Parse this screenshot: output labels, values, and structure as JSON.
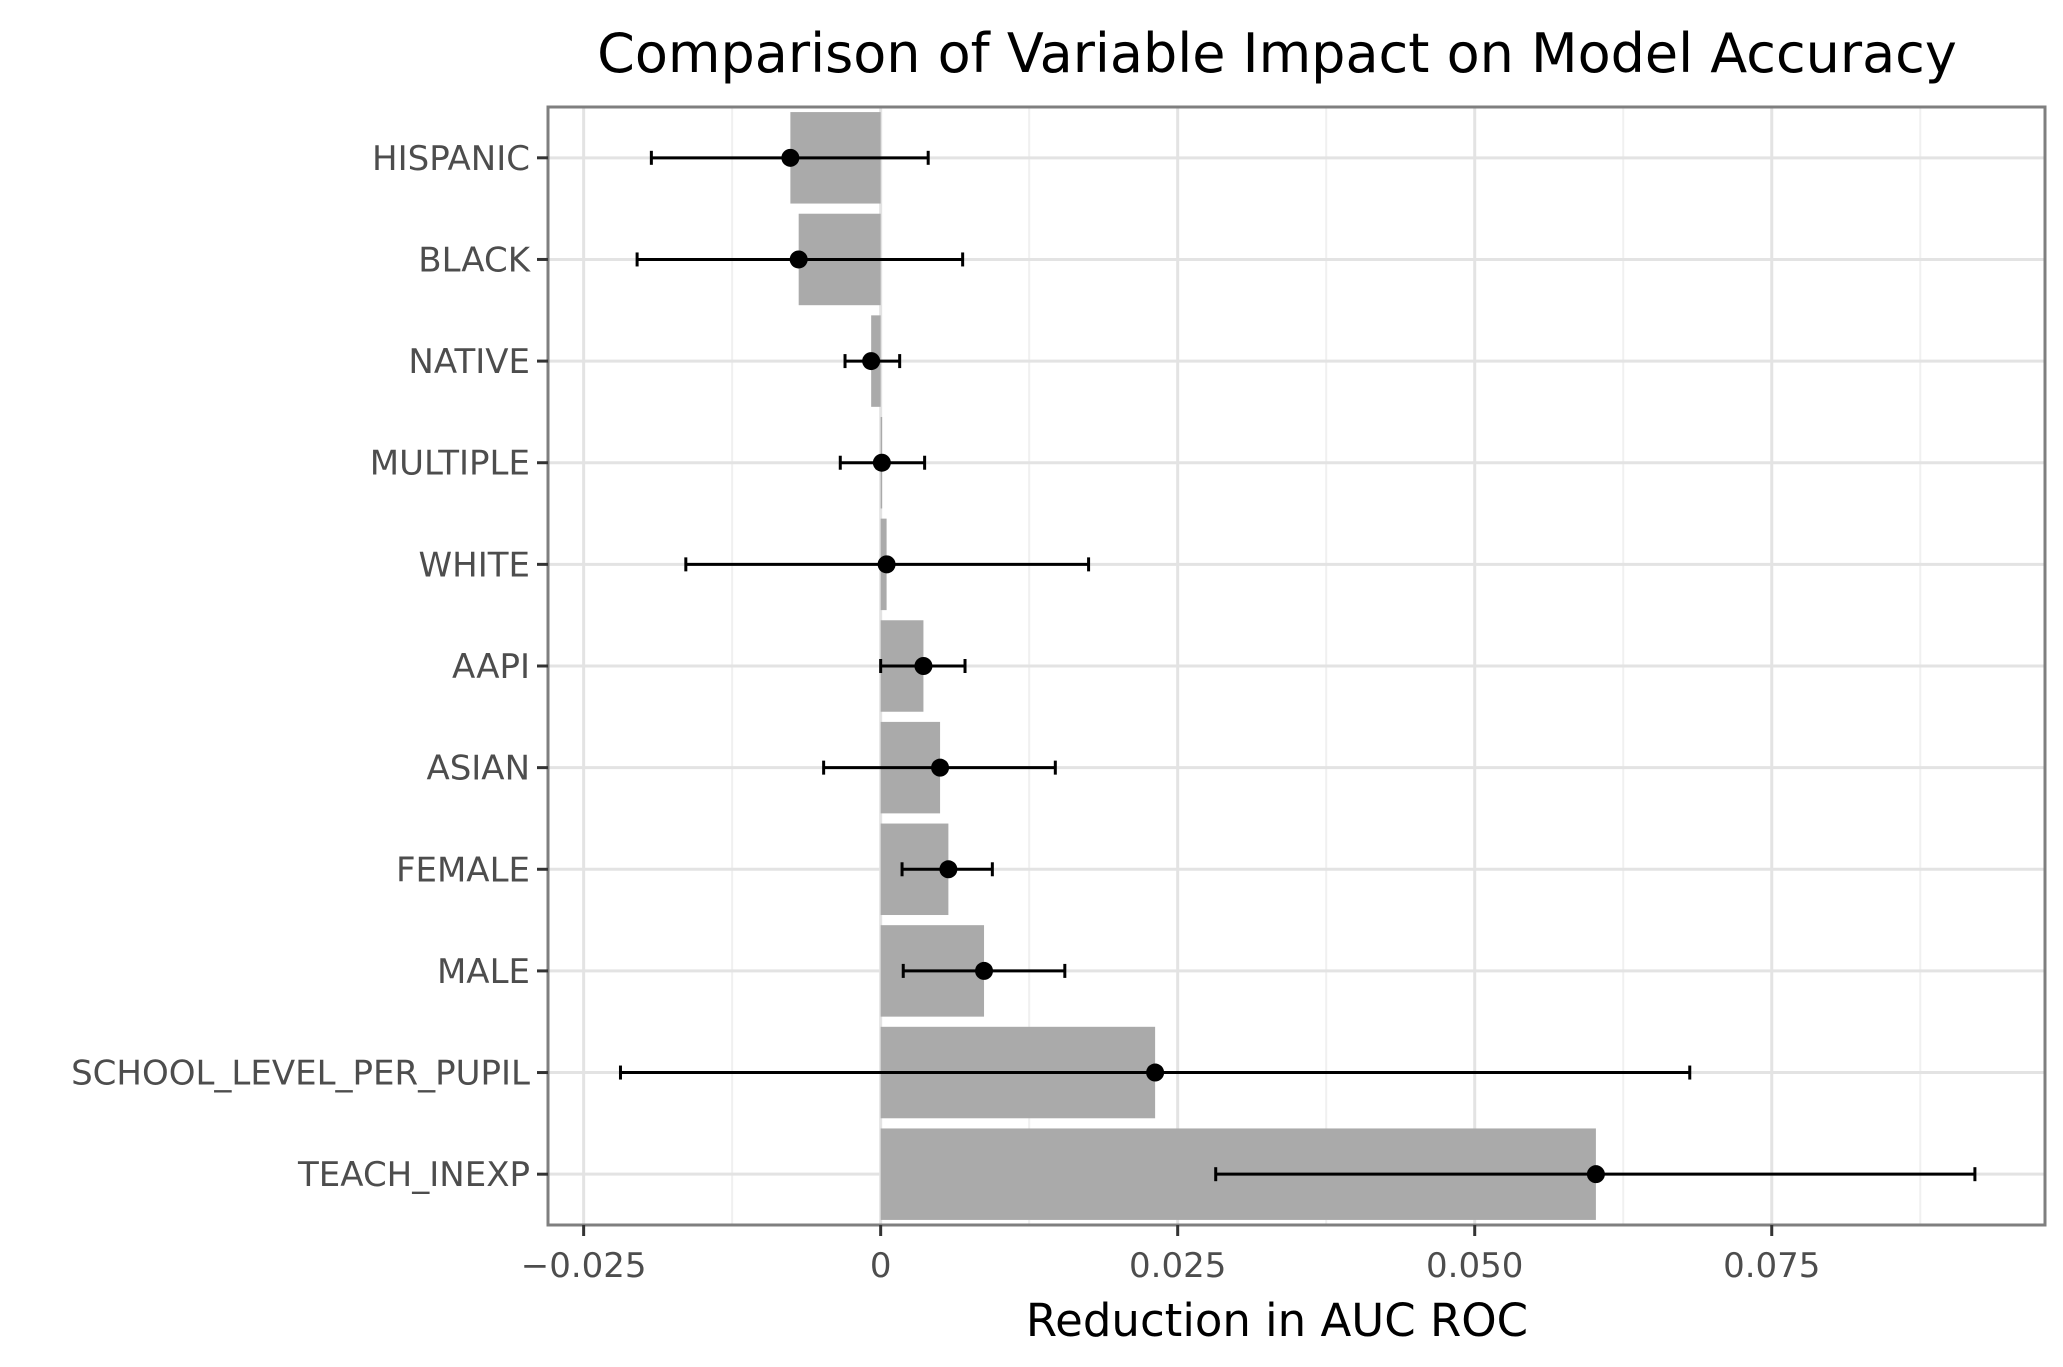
{
  "chart_data": {
    "type": "bar",
    "orientation": "horizontal",
    "title": "Comparison of Variable Impact on Model Accuracy",
    "xlabel": "Reduction in AUC ROC",
    "ylabel": "",
    "xlim": [
      -0.028,
      0.098
    ],
    "x_ticks": [
      -0.025,
      0,
      0.025,
      0.05,
      0.075
    ],
    "x_tick_labels": [
      "−0.025",
      "0",
      "0.025",
      "0.050",
      "0.075"
    ],
    "grid": true,
    "bar_color": "#aaaaaa",
    "point_color": "#000000",
    "categories": [
      "HISPANIC",
      "BLACK",
      "NATIVE",
      "MULTIPLE",
      "WHITE",
      "AAPI",
      "ASIAN",
      "FEMALE",
      "MALE",
      "SCHOOL_LEVEL_PER_PUPIL",
      "TEACH_INEXP"
    ],
    "values": [
      -0.0076,
      -0.0069,
      -0.0008,
      0.0001,
      0.0005,
      0.0036,
      0.005,
      0.0057,
      0.0087,
      0.0231,
      0.0602
    ],
    "error_low": [
      -0.0193,
      -0.0205,
      -0.003,
      -0.0034,
      -0.0164,
      0.0,
      -0.0048,
      0.0018,
      0.0019,
      -0.0219,
      0.0282
    ],
    "error_high": [
      0.004,
      0.0069,
      0.0016,
      0.0037,
      0.0175,
      0.0071,
      0.0147,
      0.0094,
      0.0155,
      0.0681,
      0.0921
    ]
  }
}
